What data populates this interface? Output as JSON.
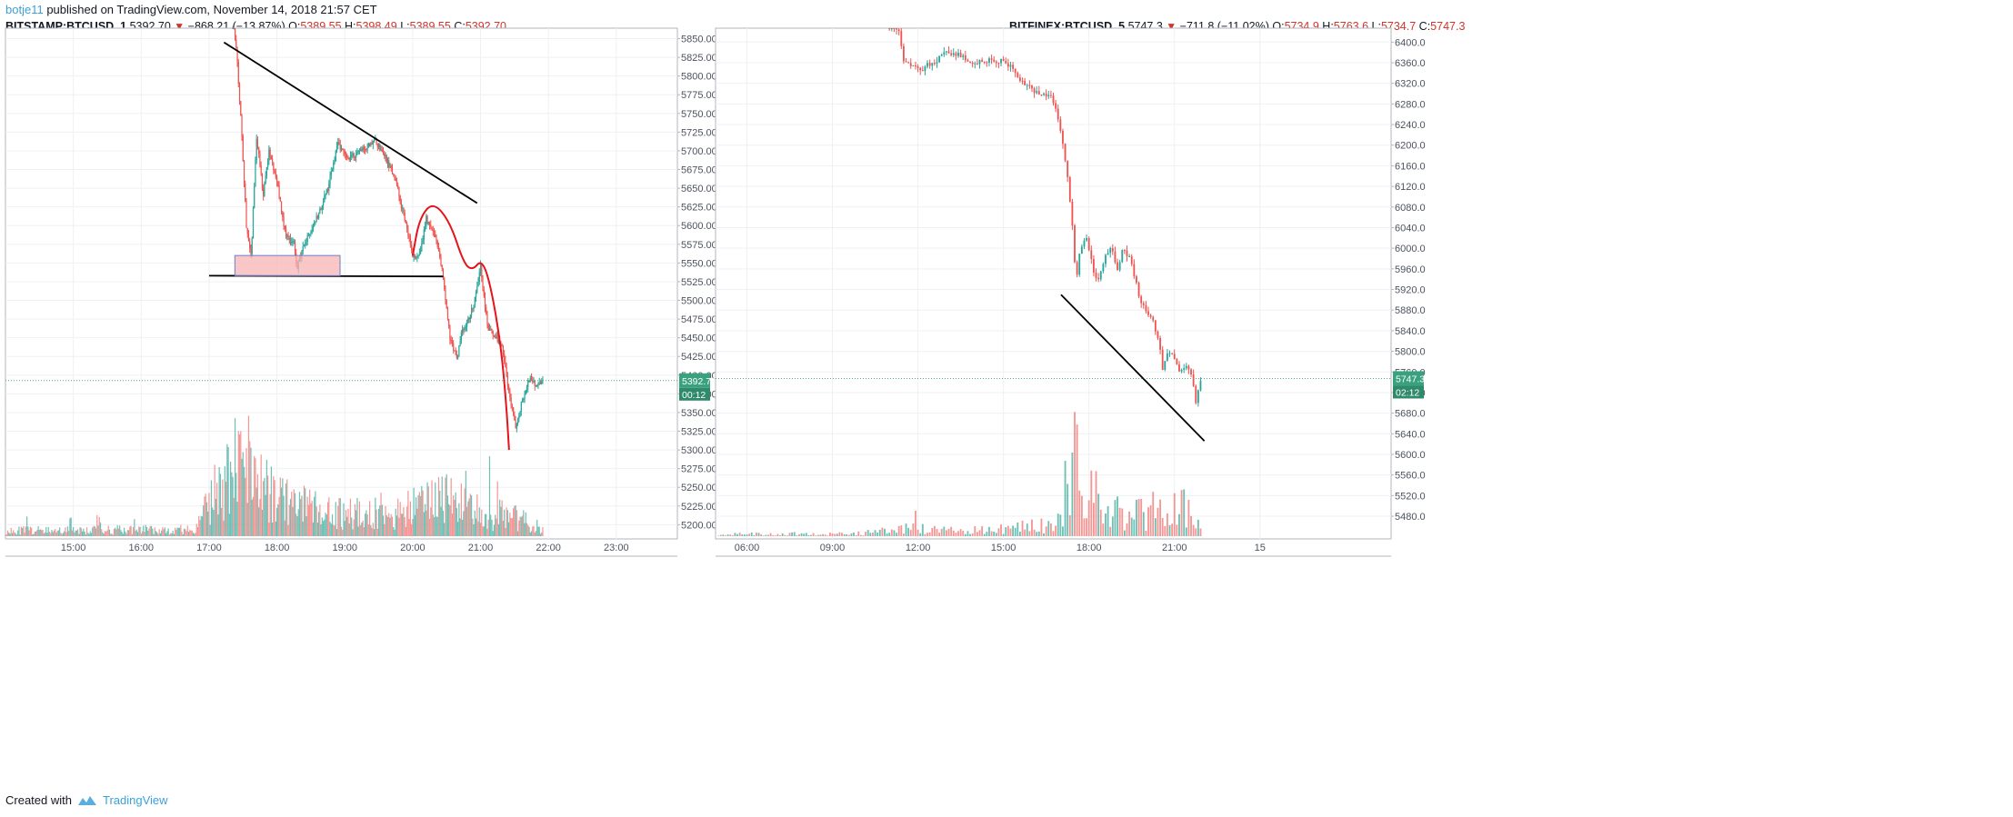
{
  "header": {
    "author": "botje11",
    "published_text": "published on TradingView.com, November 14, 2018 21:57 CET"
  },
  "footer": {
    "created_with": "Created with",
    "brand": "TradingView"
  },
  "colors": {
    "up": "#26a69a",
    "down": "#ef5350",
    "volume_up": "#55b4a8",
    "volume_down": "#f28482",
    "grid": "#eef0f3",
    "last_price_line": "#4caf7d",
    "annotation_black": "#000000",
    "annotation_red": "#e3141a",
    "support_box_fill": "#f8b4b6",
    "support_box_stroke": "#6a7fc4"
  },
  "charts": [
    {
      "legend": {
        "symbol": "BITSTAMP:BTCUSD, 1",
        "last": "5392.70",
        "change": "−868.21 (−13.87%)",
        "o_label": "O:",
        "o": "5389.55",
        "h_label": "H:",
        "h": "5398.49",
        "l_label": "L:",
        "l": "5389.55",
        "c_label": "C:",
        "c": "5392.70"
      },
      "price_tag": "5392.70",
      "countdown": "00:12"
    },
    {
      "legend": {
        "symbol": "BITFINEX:BTCUSD, 5",
        "last": "5747.3",
        "change": "−711.8 (−11.02%)",
        "o_label": "O:",
        "o": "5734.9",
        "h_label": "H:",
        "h": "5763.6",
        "l_label": "L:",
        "l": "5734.7",
        "c_label": "C:",
        "c": "5747.3"
      },
      "price_tag": "5747.3",
      "countdown": "02:12"
    }
  ],
  "chart_data": [
    {
      "type": "candlestick",
      "title": "BITSTAMP:BTCUSD, 1",
      "x_unit": "hours (CET, Nov 14 2018)",
      "xlim": [
        14.0,
        23.9
      ],
      "ylim": [
        5181,
        5864
      ],
      "x_ticks": [
        {
          "value": 15,
          "label": "15:00"
        },
        {
          "value": 16,
          "label": "16:00"
        },
        {
          "value": 17,
          "label": "17:00"
        },
        {
          "value": 18,
          "label": "18:00"
        },
        {
          "value": 19,
          "label": "19:00"
        },
        {
          "value": 20,
          "label": "20:00"
        },
        {
          "value": 21,
          "label": "21:00"
        },
        {
          "value": 22,
          "label": "22:00"
        },
        {
          "value": 23,
          "label": "23:00"
        }
      ],
      "y_ticks": [
        "5200.00",
        "5225.00",
        "5250.00",
        "5275.00",
        "5300.00",
        "5325.00",
        "5350.00",
        "5375.00",
        "5400.00",
        "5425.00",
        "5450.00",
        "5475.00",
        "5500.00",
        "5525.00",
        "5550.00",
        "5575.00",
        "5600.00",
        "5625.00",
        "5650.00",
        "5675.00",
        "5700.00",
        "5725.00",
        "5750.00",
        "5775.00",
        "5800.00",
        "5825.00",
        "5850.00"
      ],
      "last_price": 5392.7,
      "candle_interval_min": 1,
      "price_path": [
        [
          17.35,
          5870
        ],
        [
          17.4,
          5840
        ],
        [
          17.47,
          5740
        ],
        [
          17.55,
          5600
        ],
        [
          17.62,
          5560
        ],
        [
          17.7,
          5720
        ],
        [
          17.8,
          5640
        ],
        [
          17.88,
          5700
        ],
        [
          18.0,
          5660
        ],
        [
          18.12,
          5590
        ],
        [
          18.25,
          5575
        ],
        [
          18.3,
          5545
        ],
        [
          18.4,
          5575
        ],
        [
          18.55,
          5600
        ],
        [
          18.75,
          5650
        ],
        [
          18.9,
          5710
        ],
        [
          19.05,
          5690
        ],
        [
          19.25,
          5700
        ],
        [
          19.45,
          5715
        ],
        [
          19.6,
          5690
        ],
        [
          19.75,
          5660
        ],
        [
          19.9,
          5600
        ],
        [
          20.0,
          5560
        ],
        [
          20.1,
          5560
        ],
        [
          20.2,
          5610
        ],
        [
          20.35,
          5580
        ],
        [
          20.45,
          5530
        ],
        [
          20.55,
          5450
        ],
        [
          20.65,
          5420
        ],
        [
          20.72,
          5455
        ],
        [
          20.82,
          5475
        ],
        [
          20.9,
          5495
        ],
        [
          21.0,
          5545
        ],
        [
          21.1,
          5465
        ],
        [
          21.2,
          5455
        ],
        [
          21.32,
          5440
        ],
        [
          21.42,
          5375
        ],
        [
          21.52,
          5330
        ],
        [
          21.6,
          5360
        ],
        [
          21.72,
          5395
        ],
        [
          21.82,
          5385
        ],
        [
          21.93,
          5392.7
        ]
      ],
      "volume_ylim": [
        0,
        120
      ],
      "volume_path": [
        [
          14.0,
          5
        ],
        [
          16.8,
          6
        ],
        [
          17.0,
          30
        ],
        [
          17.3,
          55
        ],
        [
          17.5,
          70
        ],
        [
          17.8,
          45
        ],
        [
          18.2,
          30
        ],
        [
          18.8,
          20
        ],
        [
          19.5,
          22
        ],
        [
          20.0,
          25
        ],
        [
          20.5,
          35
        ],
        [
          21.0,
          20
        ],
        [
          21.5,
          18
        ],
        [
          21.93,
          6
        ]
      ],
      "annotations": [
        {
          "kind": "trendline",
          "color": "black",
          "from": [
            17.22,
            5845
          ],
          "to": [
            20.95,
            5630
          ]
        },
        {
          "kind": "trendline",
          "color": "black",
          "from": [
            17.0,
            5533
          ],
          "to": [
            20.45,
            5532
          ]
        },
        {
          "kind": "rectangle",
          "from": [
            17.38,
            5533
          ],
          "to": [
            18.93,
            5560
          ]
        },
        {
          "kind": "freehand",
          "color": "red",
          "points": [
            [
              20.0,
              5560
            ],
            [
              20.1,
              5610
            ],
            [
              20.3,
              5632
            ],
            [
              20.55,
              5605
            ],
            [
              20.75,
              5550
            ],
            [
              20.88,
              5540
            ],
            [
              21.02,
              5555
            ],
            [
              21.15,
              5520
            ],
            [
              21.3,
              5440
            ],
            [
              21.38,
              5360
            ],
            [
              21.42,
              5300
            ]
          ]
        }
      ]
    },
    {
      "type": "candlestick",
      "title": "BITFINEX:BTCUSD, 5",
      "x_unit": "hours (CET, Nov 14 2018)",
      "xlim": [
        4.9,
        28.6
      ],
      "ylim": [
        5436,
        6427
      ],
      "x_ticks": [
        {
          "value": 6,
          "label": "06:00"
        },
        {
          "value": 9,
          "label": "09:00"
        },
        {
          "value": 12,
          "label": "12:00"
        },
        {
          "value": 15,
          "label": "15:00"
        },
        {
          "value": 18,
          "label": "18:00"
        },
        {
          "value": 21,
          "label": "21:00"
        },
        {
          "value": 24,
          "label": "15"
        }
      ],
      "y_ticks": [
        "5480.0",
        "5520.0",
        "5560.0",
        "5600.0",
        "5640.0",
        "5680.0",
        "5720.0",
        "5760.0",
        "5800.0",
        "5840.0",
        "5880.0",
        "5920.0",
        "5960.0",
        "6000.0",
        "6040.0",
        "6080.0",
        "6120.0",
        "6160.0",
        "6200.0",
        "6240.0",
        "6280.0",
        "6320.0",
        "6360.0",
        "6400.0"
      ],
      "last_price": 5747.3,
      "candle_interval_min": 5,
      "price_path": [
        [
          11.0,
          6430
        ],
        [
          11.35,
          6425
        ],
        [
          11.5,
          6360
        ],
        [
          11.8,
          6355
        ],
        [
          12.1,
          6345
        ],
        [
          12.5,
          6360
        ],
        [
          13.0,
          6380
        ],
        [
          13.4,
          6375
        ],
        [
          13.8,
          6365
        ],
        [
          14.3,
          6360
        ],
        [
          14.7,
          6365
        ],
        [
          15.1,
          6360
        ],
        [
          15.4,
          6340
        ],
        [
          15.7,
          6320
        ],
        [
          16.1,
          6305
        ],
        [
          16.4,
          6300
        ],
        [
          16.7,
          6295
        ],
        [
          16.9,
          6260
        ],
        [
          17.1,
          6200
        ],
        [
          17.3,
          6110
        ],
        [
          17.45,
          6020
        ],
        [
          17.55,
          5930
        ],
        [
          17.7,
          6000
        ],
        [
          17.9,
          6030
        ],
        [
          18.1,
          5970
        ],
        [
          18.3,
          5930
        ],
        [
          18.55,
          5980
        ],
        [
          18.8,
          6000
        ],
        [
          19.0,
          5960
        ],
        [
          19.2,
          6000
        ],
        [
          19.45,
          5980
        ],
        [
          19.7,
          5920
        ],
        [
          19.95,
          5880
        ],
        [
          20.2,
          5870
        ],
        [
          20.45,
          5820
        ],
        [
          20.6,
          5760
        ],
        [
          20.75,
          5800
        ],
        [
          21.0,
          5790
        ],
        [
          21.2,
          5760
        ],
        [
          21.45,
          5780
        ],
        [
          21.6,
          5750
        ],
        [
          21.75,
          5705
        ],
        [
          21.95,
          5747.3
        ]
      ],
      "volume_ylim": [
        0,
        140
      ],
      "volume_path": [
        [
          5.0,
          2
        ],
        [
          10.0,
          3
        ],
        [
          11.5,
          8
        ],
        [
          14.5,
          6
        ],
        [
          16.5,
          12
        ],
        [
          17.0,
          18
        ],
        [
          17.3,
          70
        ],
        [
          17.5,
          110
        ],
        [
          17.8,
          50
        ],
        [
          18.3,
          40
        ],
        [
          19.0,
          25
        ],
        [
          20.0,
          22
        ],
        [
          20.7,
          35
        ],
        [
          21.3,
          30
        ],
        [
          21.95,
          6
        ]
      ],
      "annotations": [
        {
          "kind": "trendline",
          "color": "black",
          "from": [
            17.02,
            5910
          ],
          "to": [
            22.05,
            5626
          ]
        }
      ]
    }
  ]
}
